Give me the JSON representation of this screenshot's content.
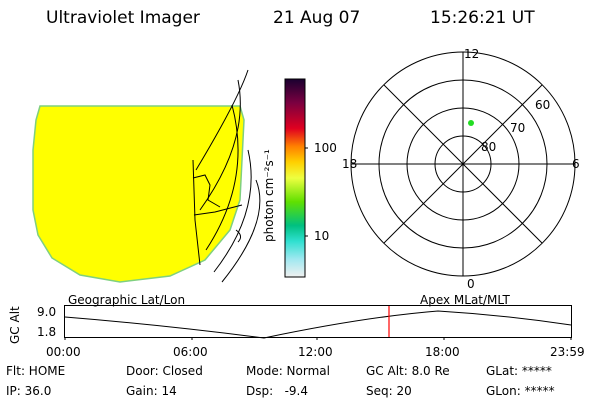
{
  "header": {
    "instrument": "Ultraviolet Imager",
    "date": "21 Aug 07",
    "time": "15:26:21 UT"
  },
  "colorbar": {
    "unit_label": "photon cm⁻²s⁻¹",
    "tick_100": "100",
    "tick_10": "10"
  },
  "polar": {
    "mlt_12": "12",
    "mlt_18": "18",
    "mlt_6": "6",
    "mlt_0": "0",
    "lat_60": "60",
    "lat_70": "70",
    "lat_80": "80"
  },
  "timeline": {
    "left_label": "Geographic Lat/Lon",
    "right_label": "Apex MLat/MLT",
    "y_title": "GC Alt",
    "y_top": "9.0",
    "y_bottom": "1.8",
    "ticks": [
      "00:00",
      "06:00",
      "12:00",
      "18:00",
      "23:59"
    ],
    "marker_time": "15:26:21"
  },
  "info": {
    "flt": "Flt: HOME",
    "ip": "IP: 36.0",
    "door": "Door: Closed",
    "gain": "Gain: 14",
    "mode": "Mode: Normal",
    "dsp": "Dsp:   -9.4",
    "gc_alt": "GC Alt: 8.0 Re",
    "seq": "Seq: 20",
    "glat": "GLat: *****",
    "glon": "GLon: *****"
  },
  "colors": {
    "image_fill": "#ffff00",
    "image_edge": "#7fd07f",
    "marker": "#ff0000",
    "point": "#22dd22"
  }
}
